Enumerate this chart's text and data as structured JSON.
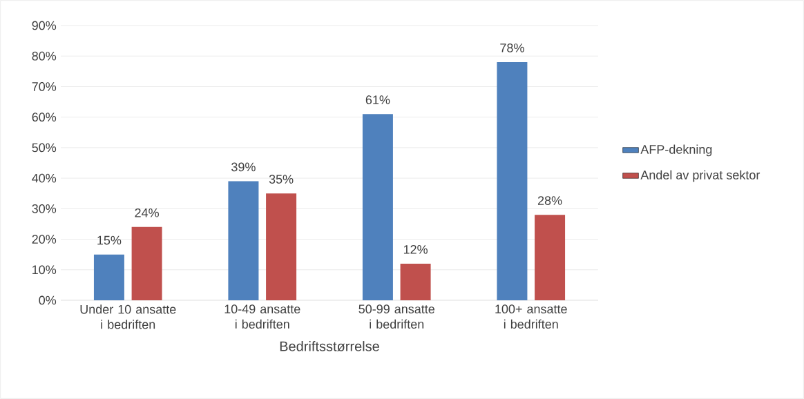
{
  "chart_data": {
    "type": "bar",
    "xlabel": "Bedriftsstørrelse",
    "categories": [
      "Under 10 ansatte i bedriften",
      "10-49 ansatte i bedriften",
      "50-99 ansatte i bedriften",
      "100+ ansatte i bedriften"
    ],
    "series": [
      {
        "name": "AFP-dekning",
        "color": "#4f81bd",
        "values": [
          15,
          39,
          61,
          78
        ],
        "value_labels": [
          "15%",
          "39%",
          "61%",
          "78%"
        ]
      },
      {
        "name": "Andel av privat sektor",
        "color": "#c0504d",
        "values": [
          24,
          35,
          12,
          28
        ],
        "value_labels": [
          "24%",
          "35%",
          "12%",
          "28%"
        ]
      }
    ],
    "ylim": [
      0,
      90
    ],
    "yticks": [
      {
        "value": 0,
        "label": "0%"
      },
      {
        "value": 10,
        "label": "10%"
      },
      {
        "value": 20,
        "label": "20%"
      },
      {
        "value": 30,
        "label": "30%"
      },
      {
        "value": 40,
        "label": "40%"
      },
      {
        "value": 50,
        "label": "50%"
      },
      {
        "value": 60,
        "label": "60%"
      },
      {
        "value": 70,
        "label": "70%"
      },
      {
        "value": 80,
        "label": "80%"
      },
      {
        "value": 90,
        "label": "90%"
      }
    ],
    "grid": "y",
    "legend": "right"
  }
}
